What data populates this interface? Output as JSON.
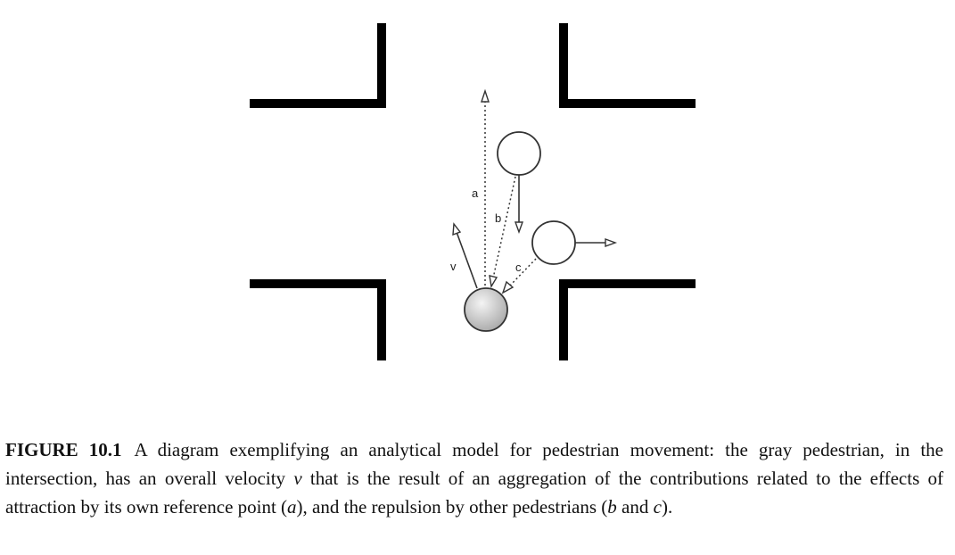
{
  "diagram": {
    "labels": {
      "a": "a",
      "b": "b",
      "c": "c",
      "v": "v"
    }
  },
  "caption": {
    "label": "FIGURE 10.1",
    "text_1": "A diagram exemplifying an analytical model for pedestrian movement: the gray pedestrian, in the intersection, has an overall velocity ",
    "var_v": "v",
    "text_2": " that is the result of an aggregation of the contributions related to the effects of attraction by its own reference point (",
    "var_a": "a",
    "text_3": "), and the repulsion by other pedestrians (",
    "var_b": "b",
    "text_4": " and ",
    "var_c": "c",
    "text_5": ")."
  }
}
